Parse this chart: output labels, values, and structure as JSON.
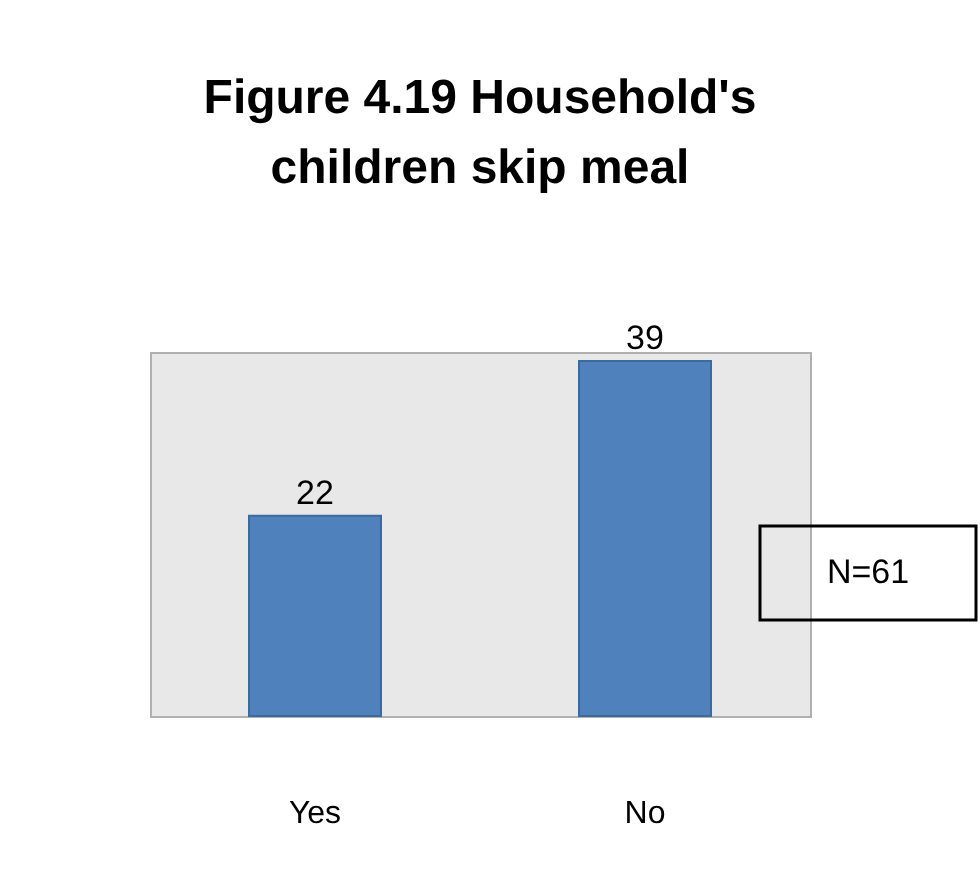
{
  "chart_data": {
    "type": "bar",
    "title": "Figure  4.19 Household's children skip meal",
    "categories": [
      "Yes",
      "No"
    ],
    "values": [
      22,
      39
    ],
    "color": "#4f81bd",
    "data_labels": true,
    "grid": false,
    "annotations": [
      "N=61"
    ]
  }
}
